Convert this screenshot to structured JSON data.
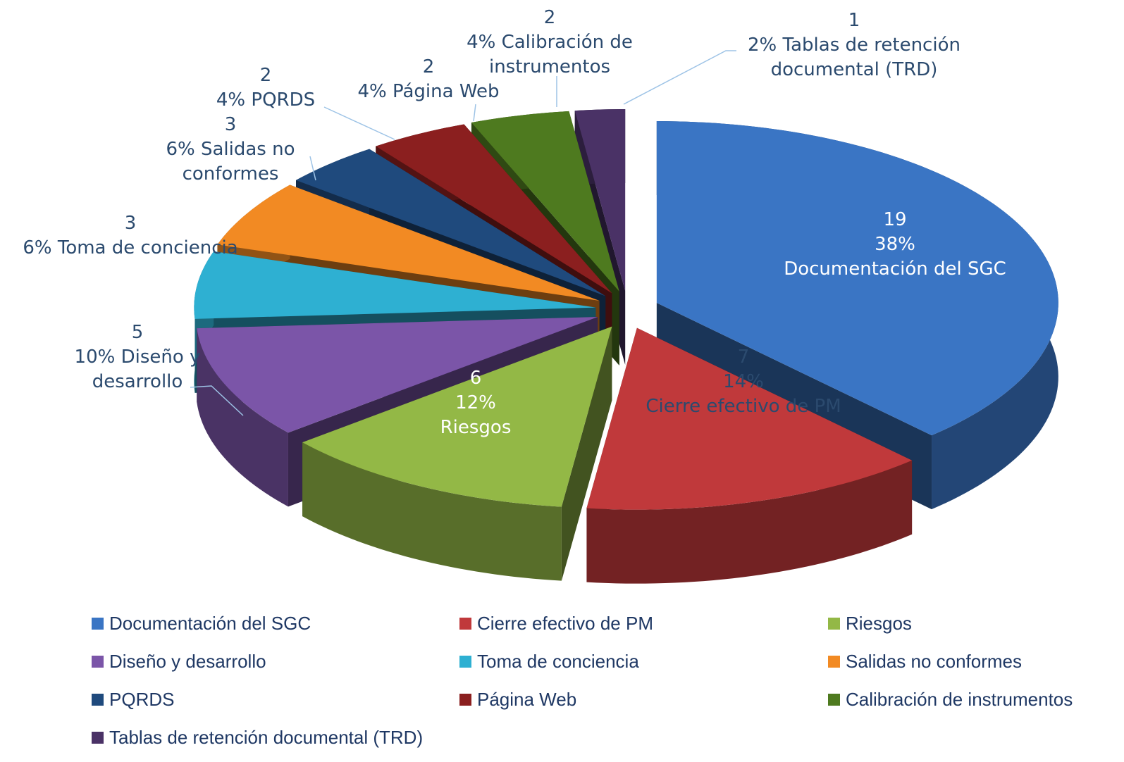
{
  "chart_data": {
    "type": "pie",
    "categories": [
      "Documentación del SGC",
      "Cierre efectivo de PM",
      "Riesgos",
      "Diseño y desarrollo",
      "Toma de conciencia",
      "Salidas no conformes",
      "PQRDS",
      "Página Web",
      "Calibración de instrumentos",
      "Tablas de retención documental (TRD)"
    ],
    "values": [
      19,
      7,
      6,
      5,
      3,
      3,
      2,
      2,
      2,
      1
    ],
    "percents": [
      38,
      14,
      12,
      10,
      6,
      6,
      4,
      4,
      4,
      2
    ],
    "percent_labels": [
      "38%",
      "14%",
      "12%",
      "10%",
      "6%",
      "6%",
      "4%",
      "4%",
      "4%",
      "2%"
    ],
    "colors": [
      "#3a75c4",
      "#c0393b",
      "#93b846",
      "#7b55a8",
      "#2eb0d2",
      "#f28a23",
      "#1f4a7d",
      "#8b1f1f",
      "#4e7a1f",
      "#4a3266"
    ],
    "legend": "bottom"
  }
}
